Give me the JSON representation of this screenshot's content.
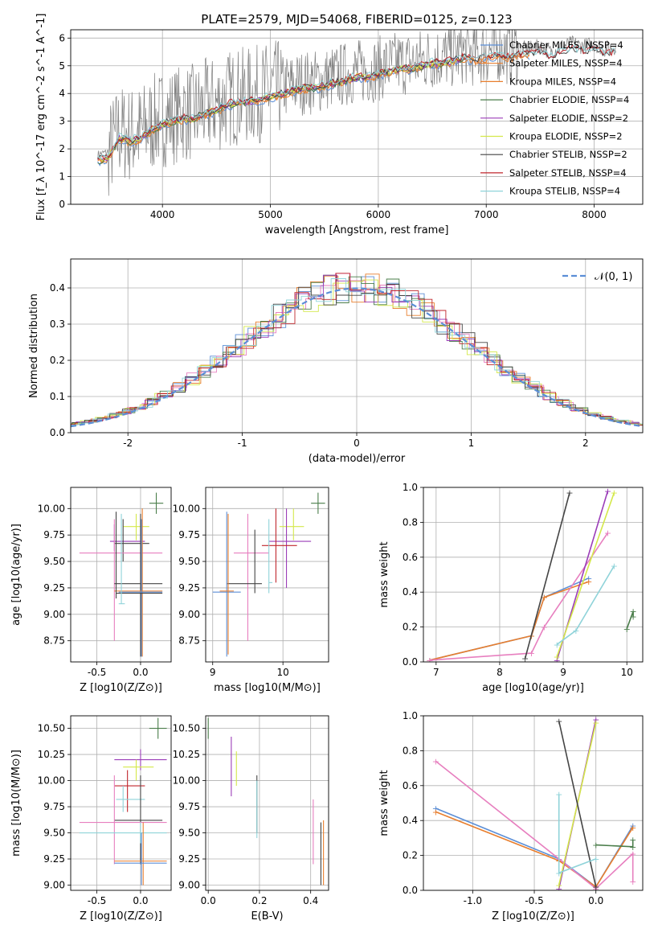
{
  "figure_title": "PLATE=2579, MJD=54068, FIBERID=0125, z=0.123",
  "colors": {
    "Chabrier MILES": "#5b8ed6",
    "Salpeter MILES": "#e87e2d",
    "Kroupa MILES": "#e87e2d",
    "Chabrier ELODIE": "#4a7d4a",
    "Salpeter ELODIE": "#9b3db8",
    "Kroupa ELODIE": "#d4e84a",
    "Chabrier STELIB": "#444444",
    "Salpeter STELIB": "#c0272d",
    "Kroupa STELIB": "#8fd3d9",
    "Kroupa MILES pink": "#e77fbf",
    "data": "#808080",
    "normal": "#5b8ed6"
  },
  "chart_data": [
    {
      "id": "spectrum",
      "type": "line",
      "title": "PLATE=2579, MJD=54068, FIBERID=0125, z=0.123",
      "xlabel": "wavelength [Angstrom, rest frame]",
      "ylabel": "Flux [f_λ 10^-17 erg cm^-2 s^-1 A^-1]",
      "xlim": [
        3150,
        8450
      ],
      "ylim": [
        0,
        6.3
      ],
      "xticks": [
        4000,
        5000,
        6000,
        7000,
        8000
      ],
      "yticks": [
        0,
        1,
        2,
        3,
        4,
        5,
        6
      ],
      "data_curve": {
        "x": [
          3400,
          3500,
          3600,
          3700,
          3800,
          3900,
          4000,
          4100,
          4200,
          4300,
          4400,
          4500,
          4600,
          4700,
          4800,
          4900,
          5000,
          5100,
          5200,
          5300,
          5400,
          5500,
          5600,
          5700,
          5800,
          5900,
          6000,
          6100,
          6200,
          6300,
          6400,
          6500,
          6600,
          6700,
          6800,
          6900,
          7000,
          7100,
          7200,
          7300,
          7400,
          7500,
          7600,
          7700,
          7800,
          7900,
          8000,
          8100,
          8200
        ],
        "y": [
          1.8,
          1.9,
          2.6,
          2.5,
          2.6,
          2.9,
          3.1,
          3.2,
          3.3,
          3.3,
          3.5,
          3.6,
          3.8,
          3.9,
          3.9,
          4.0,
          4.1,
          4.2,
          4.3,
          4.4,
          4.4,
          4.5,
          4.6,
          4.7,
          4.8,
          4.8,
          4.9,
          5.0,
          5.1,
          5.1,
          5.2,
          5.3,
          5.3,
          5.4,
          5.5,
          5.4,
          5.5,
          5.6,
          5.5,
          5.6,
          5.6,
          5.7,
          5.5,
          5.7,
          5.8,
          5.7,
          5.8,
          5.6,
          5.7
        ]
      },
      "legend": [
        {
          "label": "Chabrier MILES, N_SSP=4",
          "color_key": "Chabrier MILES"
        },
        {
          "label": "Salpeter MILES, N_SSP=4",
          "color_key": "Salpeter MILES"
        },
        {
          "label": "Kroupa MILES, N_SSP=4",
          "color_key": "Kroupa MILES"
        },
        {
          "label": "Chabrier ELODIE, N_SSP=4",
          "color_key": "Chabrier ELODIE"
        },
        {
          "label": "Salpeter ELODIE, N_SSP=2",
          "color_key": "Salpeter ELODIE"
        },
        {
          "label": "Kroupa ELODIE, N_SSP=2",
          "color_key": "Kroupa ELODIE"
        },
        {
          "label": "Chabrier STELIB, N_SSP=2",
          "color_key": "Chabrier STELIB"
        },
        {
          "label": "Salpeter STELIB, N_SSP=4",
          "color_key": "Salpeter STELIB"
        },
        {
          "label": "Kroupa STELIB, N_SSP=4",
          "color_key": "Kroupa STELIB"
        }
      ]
    },
    {
      "id": "residuals",
      "type": "line",
      "xlabel": "(data-model)/error",
      "ylabel": "Normed distribution",
      "xlim": [
        -2.5,
        2.5
      ],
      "ylim": [
        0,
        0.48
      ],
      "xticks": [
        -2,
        -1,
        0,
        1,
        2
      ],
      "yticks": [
        0.0,
        0.1,
        0.2,
        0.3,
        0.4
      ],
      "legend": [
        {
          "label": "𝒩(0, 1)",
          "color_key": "normal"
        }
      ],
      "normal_curve": {
        "mean": 0,
        "sigma": 1
      }
    },
    {
      "id": "age_vs_Z",
      "type": "scatter",
      "xlabel": "Z [log10(Z/Z⊙)]",
      "ylabel": "age  [log10(age/yr)]",
      "xlim": [
        -0.8,
        0.35
      ],
      "ylim": [
        8.55,
        10.2
      ],
      "xticks": [
        -0.5,
        0.0
      ],
      "yticks": [
        8.75,
        9.0,
        9.25,
        9.5,
        9.75,
        10.0
      ]
    },
    {
      "id": "age_vs_mass",
      "type": "scatter",
      "xlabel": "mass [log10(M/M⊙)]",
      "xlim": [
        8.9,
        10.65
      ],
      "ylim": [
        8.55,
        10.2
      ],
      "xticks": [
        9,
        10
      ],
      "yticks": [
        8.75,
        9.0,
        9.25,
        9.5,
        9.75,
        10.0
      ]
    },
    {
      "id": "weight_vs_age",
      "type": "line",
      "xlabel": "age  [log10(age/yr)]",
      "ylabel": "mass weight",
      "xlim": [
        6.8,
        10.25
      ],
      "ylim": [
        0,
        1.0
      ],
      "xticks": [
        7,
        8,
        9,
        10
      ],
      "yticks": [
        0.0,
        0.2,
        0.4,
        0.6,
        0.8,
        1.0
      ]
    },
    {
      "id": "mass_vs_Z",
      "type": "scatter",
      "xlabel": "Z [log10(Z/Z⊙)]",
      "ylabel": "mass [log10(M/M⊙)]",
      "xlim": [
        -0.8,
        0.35
      ],
      "ylim": [
        8.95,
        10.62
      ],
      "xticks": [
        -0.5,
        0.0
      ],
      "yticks": [
        9.0,
        9.25,
        9.5,
        9.75,
        10.0,
        10.25,
        10.5
      ]
    },
    {
      "id": "mass_vs_ebv",
      "type": "scatter",
      "xlabel": "E(B-V)",
      "xlim": [
        -0.01,
        0.47
      ],
      "ylim": [
        8.95,
        10.62
      ],
      "xticks": [
        0.0,
        0.2,
        0.4
      ],
      "yticks": [
        9.0,
        9.25,
        9.5,
        9.75,
        10.0,
        10.25,
        10.5
      ]
    },
    {
      "id": "weight_vs_Z",
      "type": "line",
      "xlabel": "Z [log10(Z/Z⊙)]",
      "ylabel": "mass weight",
      "xlim": [
        -1.4,
        0.38
      ],
      "ylim": [
        0,
        1.0
      ],
      "xticks": [
        -1.0,
        -0.5,
        0.0
      ],
      "yticks": [
        0.0,
        0.2,
        0.4,
        0.6,
        0.8,
        1.0
      ]
    }
  ]
}
